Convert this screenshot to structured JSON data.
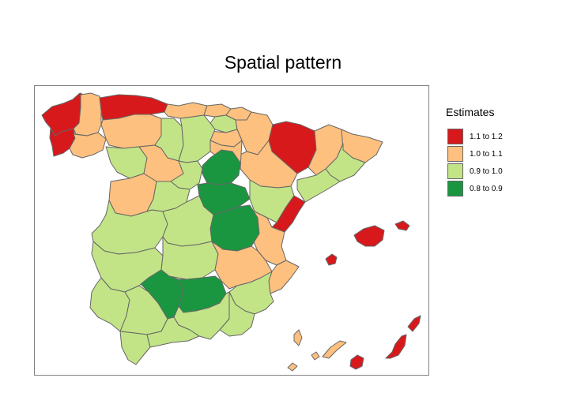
{
  "title": "Spatial pattern",
  "legend": {
    "title": "Estimates",
    "items": [
      {
        "label": "1.1 to 1.2",
        "color": "#d7191c"
      },
      {
        "label": "1.0 to 1.1",
        "color": "#fdc07e"
      },
      {
        "label": "0.9 to 1.0",
        "color": "#c2e487"
      },
      {
        "label": "0.8 to 0.9",
        "color": "#1a9641"
      }
    ]
  },
  "map": {
    "regions": [
      {
        "id": "coruna",
        "class": "1.1 to 1.2"
      },
      {
        "id": "lugo",
        "class": "1.0 to 1.1"
      },
      {
        "id": "pontevedra",
        "class": "1.1 to 1.2"
      },
      {
        "id": "ourense",
        "class": "1.0 to 1.1"
      },
      {
        "id": "asturias",
        "class": "1.1 to 1.2"
      },
      {
        "id": "cantabria",
        "class": "1.0 to 1.1"
      },
      {
        "id": "bizkaia",
        "class": "1.0 to 1.1"
      },
      {
        "id": "gipuzkoa",
        "class": "1.0 to 1.1"
      },
      {
        "id": "alava",
        "class": "0.9 to 1.0"
      },
      {
        "id": "navarra",
        "class": "1.0 to 1.1"
      },
      {
        "id": "larioja",
        "class": "1.0 to 1.1"
      },
      {
        "id": "huesca",
        "class": "1.1 to 1.2"
      },
      {
        "id": "lleida",
        "class": "1.0 to 1.1"
      },
      {
        "id": "girona",
        "class": "1.0 to 1.1"
      },
      {
        "id": "barcelona",
        "class": "0.9 to 1.0"
      },
      {
        "id": "tarragona",
        "class": "0.9 to 1.0"
      },
      {
        "id": "zaragoza",
        "class": "1.0 to 1.1"
      },
      {
        "id": "teruel",
        "class": "0.9 to 1.0"
      },
      {
        "id": "castellon",
        "class": "1.1 to 1.2"
      },
      {
        "id": "valencia",
        "class": "1.0 to 1.1"
      },
      {
        "id": "alicante",
        "class": "1.0 to 1.1"
      },
      {
        "id": "leon",
        "class": "1.0 to 1.1"
      },
      {
        "id": "palencia",
        "class": "0.9 to 1.0"
      },
      {
        "id": "burgos",
        "class": "0.9 to 1.0"
      },
      {
        "id": "zamora",
        "class": "0.9 to 1.0"
      },
      {
        "id": "valladolid",
        "class": "1.0 to 1.1"
      },
      {
        "id": "soria",
        "class": "1.0 to 1.1"
      },
      {
        "id": "salamanca",
        "class": "1.0 to 1.1"
      },
      {
        "id": "avila",
        "class": "0.9 to 1.0"
      },
      {
        "id": "segovia",
        "class": "0.9 to 1.0"
      },
      {
        "id": "madrid",
        "class": "0.8 to 0.9"
      },
      {
        "id": "guadalajara",
        "class": "0.8 to 0.9"
      },
      {
        "id": "caceres",
        "class": "0.9 to 1.0"
      },
      {
        "id": "badajoz",
        "class": "0.9 to 1.0"
      },
      {
        "id": "toledo",
        "class": "0.9 to 1.0"
      },
      {
        "id": "cuenca",
        "class": "0.8 to 0.9"
      },
      {
        "id": "ciudadreal",
        "class": "0.9 to 1.0"
      },
      {
        "id": "albacete",
        "class": "1.0 to 1.1"
      },
      {
        "id": "murcia",
        "class": "0.9 to 1.0"
      },
      {
        "id": "huelva",
        "class": "0.9 to 1.0"
      },
      {
        "id": "sevilla",
        "class": "0.9 to 1.0"
      },
      {
        "id": "cordoba",
        "class": "0.8 to 0.9"
      },
      {
        "id": "jaen",
        "class": "0.8 to 0.9"
      },
      {
        "id": "granada",
        "class": "0.9 to 1.0"
      },
      {
        "id": "almeria",
        "class": "0.9 to 1.0"
      },
      {
        "id": "cadiz",
        "class": "0.9 to 1.0"
      },
      {
        "id": "malaga",
        "class": "0.9 to 1.0"
      },
      {
        "id": "mallorca",
        "class": "1.1 to 1.2"
      },
      {
        "id": "menorca",
        "class": "1.1 to 1.2"
      },
      {
        "id": "ibiza",
        "class": "1.1 to 1.2"
      },
      {
        "id": "fuerteventura",
        "class": "1.1 to 1.2"
      },
      {
        "id": "lanzarote",
        "class": "1.1 to 1.2"
      },
      {
        "id": "grancanaria",
        "class": "1.1 to 1.2"
      },
      {
        "id": "tenerife",
        "class": "1.0 to 1.1"
      },
      {
        "id": "lapalma",
        "class": "1.0 to 1.1"
      },
      {
        "id": "lagomera",
        "class": "1.0 to 1.1"
      },
      {
        "id": "hierro",
        "class": "1.0 to 1.1"
      }
    ]
  }
}
